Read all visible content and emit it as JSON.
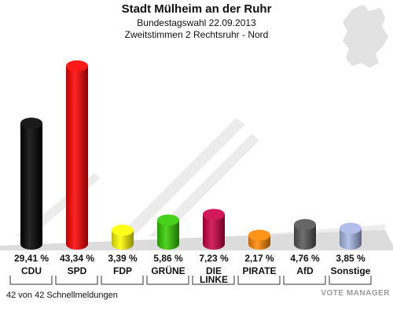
{
  "header": {
    "title": "Stadt Mülheim an der Ruhr",
    "subtitle1": "Bundestagswahl 22.09.2013",
    "subtitle2": "Zweitstimmen 2 Rechtsruhr - Nord"
  },
  "footer": {
    "reports": "42 von 42 Schnellmeldungen",
    "watermark": "VOTE MANAGER"
  },
  "chart_data": {
    "type": "bar",
    "categories": [
      "CDU",
      "SPD",
      "FDP",
      "GRÜNE",
      "DIE LINKE",
      "PIRATE",
      "AfD",
      "Sonstige"
    ],
    "values": [
      29.41,
      43.34,
      3.39,
      5.86,
      7.23,
      2.17,
      4.76,
      3.85
    ],
    "value_labels": [
      "29,41 %",
      "43,34 %",
      "3,39 %",
      "5,86 %",
      "7,23 %",
      "2,17 %",
      "4,76 %",
      "3,85 %"
    ],
    "colors": [
      "#000000",
      "#ff0000",
      "#ffff00",
      "#33cc00",
      "#cc0044",
      "#ff8800",
      "#555555",
      "#aab8e8"
    ],
    "ylim": [
      0,
      45
    ]
  }
}
